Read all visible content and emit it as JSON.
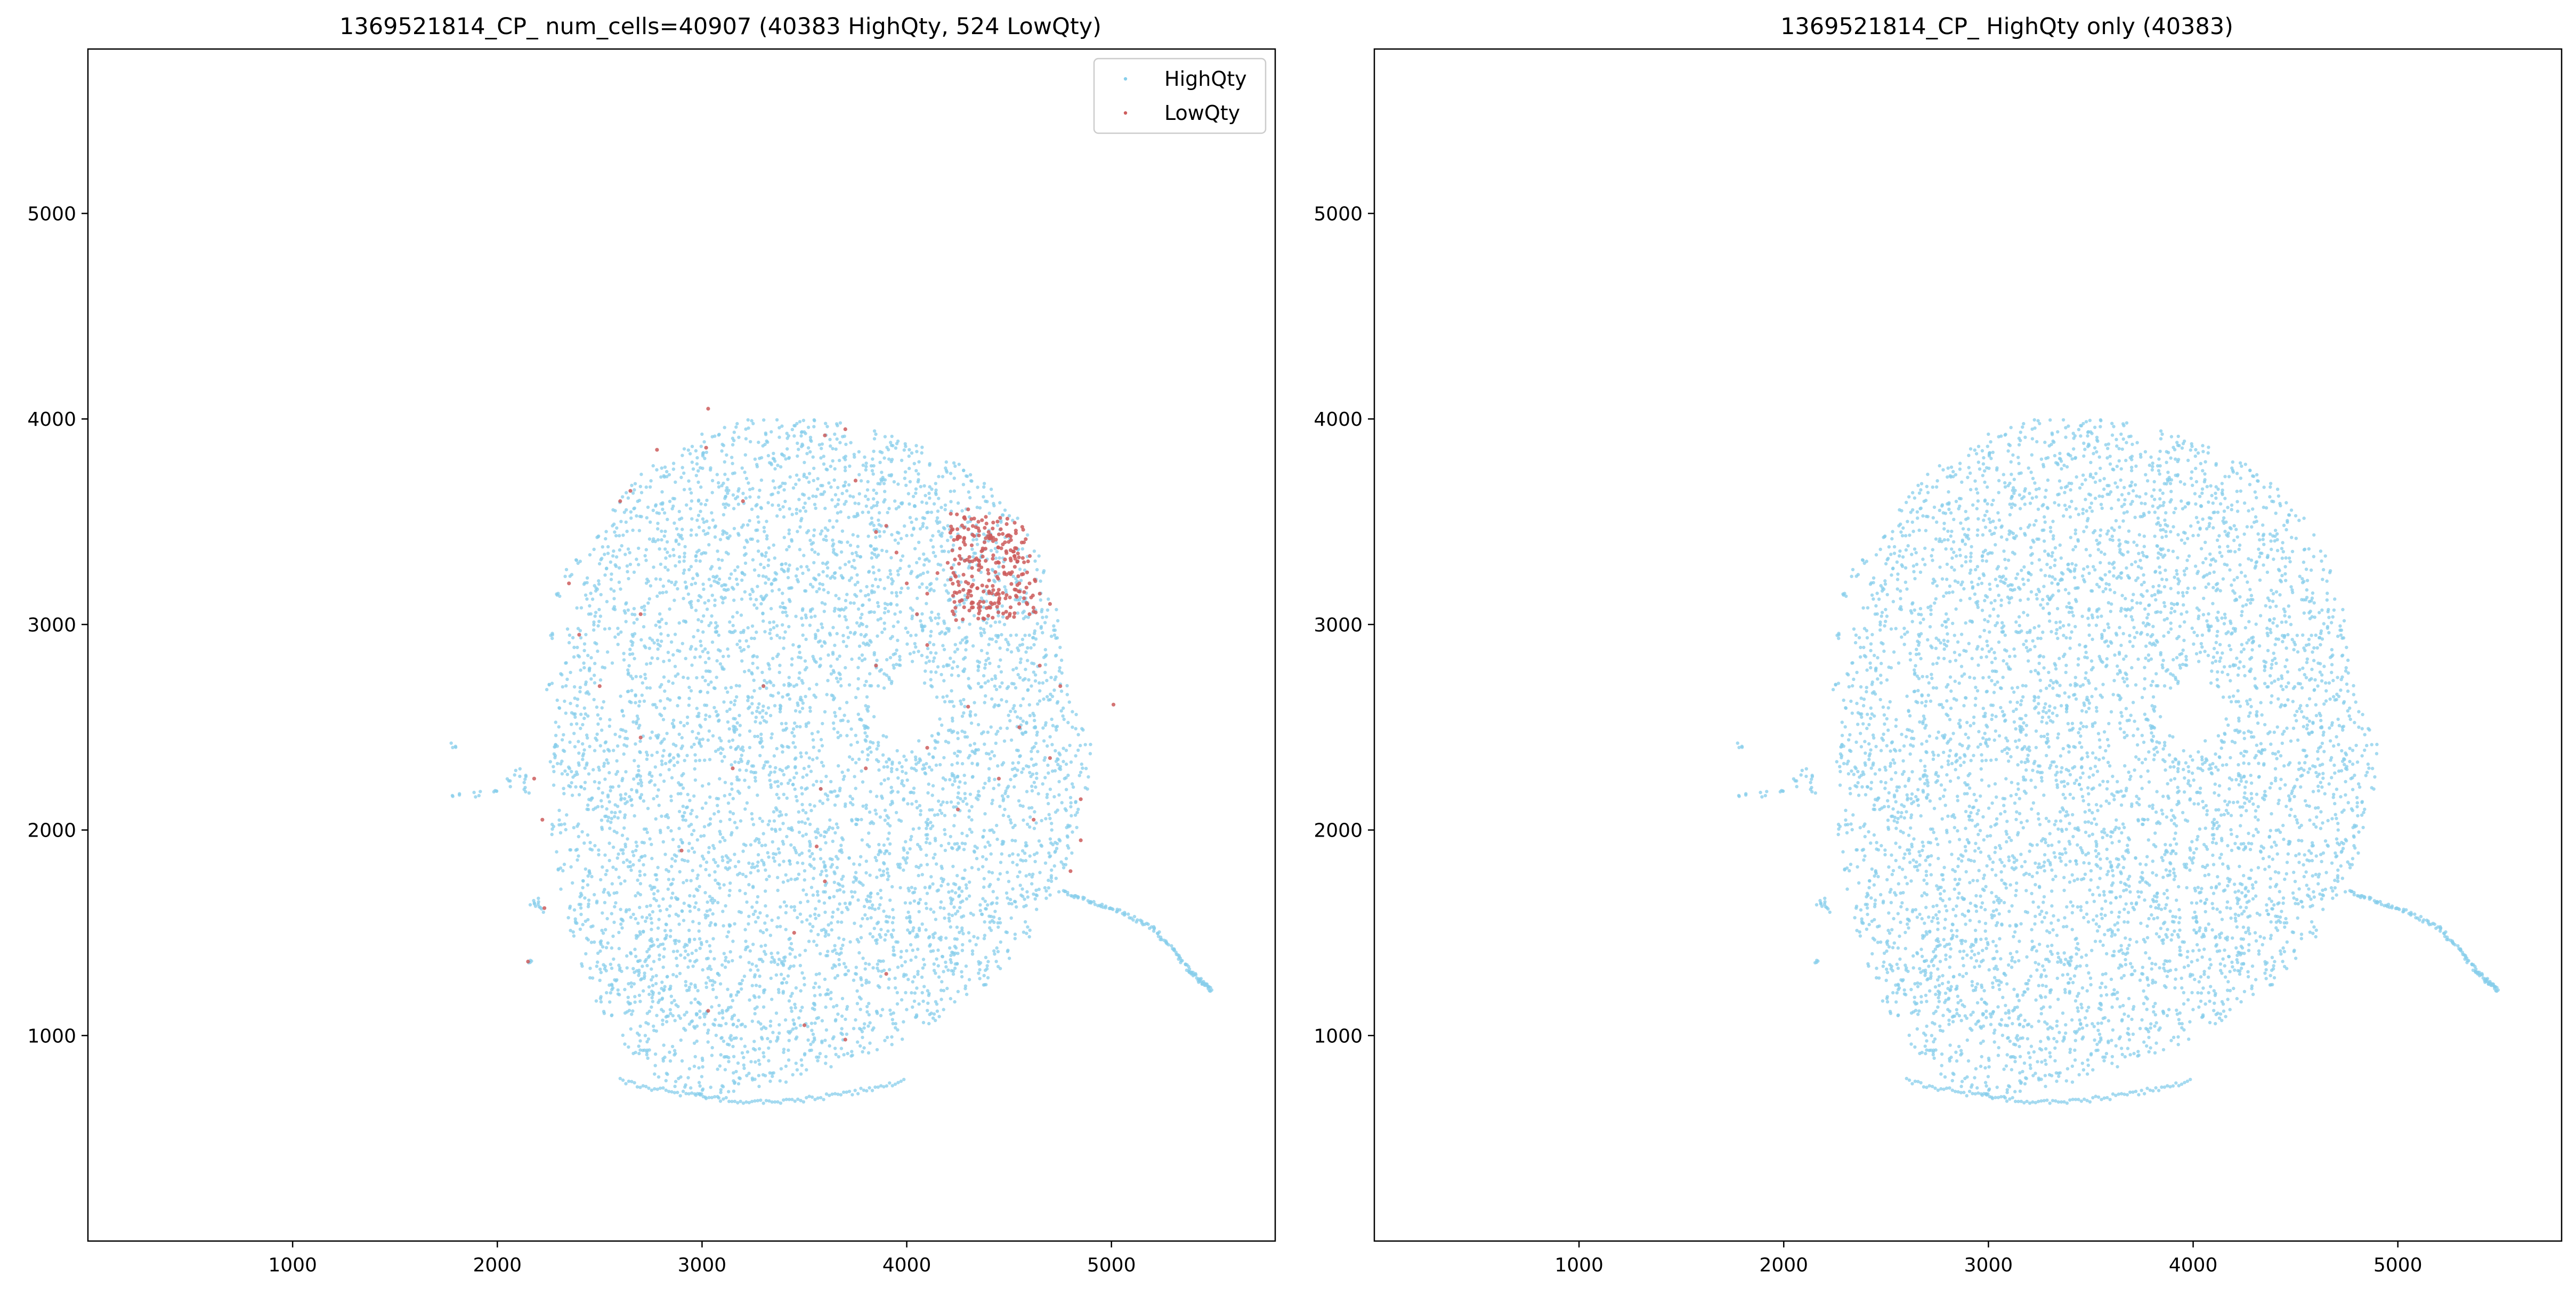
{
  "chart_data": [
    {
      "type": "scatter",
      "title": "1369521814_CP_ num_cells=40907 (40383 HighQty, 524 LowQty)",
      "xlabel": "",
      "ylabel": "",
      "xlim": [
        0,
        5800
      ],
      "ylim": [
        0,
        5800
      ],
      "xticks": [
        1000,
        2000,
        3000,
        4000,
        5000
      ],
      "yticks": [
        1000,
        2000,
        3000,
        4000,
        5000
      ],
      "grid": false,
      "legend": "top-right",
      "series": [
        {
          "name": "HighQty",
          "color": "#87CEEB",
          "count": 40383,
          "shape": "tissue section, roughly circular, centered near (3800, 2350), spanning x 1780-5500, y 660-4020, with a hole near (4000, 2600)"
        },
        {
          "name": "LowQty",
          "color": "#CD5C5C",
          "count": 524,
          "points": [
            [
              4300,
              3560
            ],
            [
              4350,
              3500
            ],
            [
              4280,
              3520
            ],
            [
              4400,
              3450
            ],
            [
              4450,
              3300
            ],
            [
              4500,
              3250
            ],
            [
              4550,
              3200
            ],
            [
              4600,
              3200
            ],
            [
              4420,
              3320
            ],
            [
              4380,
              3400
            ],
            [
              4250,
              3420
            ],
            [
              4200,
              3300
            ],
            [
              4150,
              3250
            ],
            [
              4100,
              3150
            ],
            [
              4050,
              3050
            ],
            [
              4300,
              3150
            ],
            [
              4350,
              3100
            ],
            [
              4230,
              3050
            ],
            [
              4480,
              3400
            ],
            [
              4530,
              3320
            ],
            [
              4650,
              3150
            ],
            [
              4700,
              3100
            ],
            [
              4600,
              3050
            ],
            [
              4000,
              3200
            ],
            [
              3950,
              3350
            ],
            [
              3900,
              3480
            ],
            [
              3850,
              3450
            ],
            [
              3750,
              3700
            ],
            [
              3700,
              3950
            ],
            [
              3600,
              3920
            ],
            [
              3020,
              3860
            ],
            [
              3030,
              4050
            ],
            [
              2780,
              3850
            ],
            [
              2650,
              3650
            ],
            [
              2600,
              3600
            ],
            [
              2400,
              2950
            ],
            [
              2350,
              3200
            ],
            [
              2180,
              2250
            ],
            [
              2220,
              2050
            ],
            [
              2230,
              1620
            ],
            [
              2150,
              1360
            ],
            [
              3030,
              1120
            ],
            [
              3580,
              2200
            ],
            [
              4100,
              2900
            ],
            [
              4650,
              2800
            ],
            [
              4750,
              2700
            ],
            [
              5010,
              2610
            ],
            [
              4850,
              2150
            ],
            [
              4620,
              2050
            ],
            [
              3800,
              2300
            ],
            [
              3560,
              1920
            ],
            [
              3600,
              1750
            ],
            [
              3450,
              1500
            ],
            [
              3900,
              1300
            ],
            [
              3500,
              1050
            ],
            [
              3700,
              980
            ],
            [
              3150,
              2300
            ],
            [
              2900,
              1900
            ],
            [
              2700,
              2450
            ],
            [
              3300,
              2700
            ],
            [
              4100,
              2400
            ],
            [
              4250,
              2100
            ],
            [
              4450,
              2250
            ],
            [
              4700,
              2350
            ],
            [
              4800,
              1800
            ],
            [
              4850,
              1950
            ],
            [
              4550,
              2500
            ],
            [
              4300,
              2600
            ],
            [
              3850,
              2800
            ],
            [
              3200,
              3600
            ],
            [
              2700,
              3050
            ],
            [
              2500,
              2700
            ]
          ]
        }
      ]
    },
    {
      "type": "scatter",
      "title": "1369521814_CP_ HighQty only (40383)",
      "xlabel": "",
      "ylabel": "",
      "xlim": [
        0,
        5800
      ],
      "ylim": [
        0,
        5800
      ],
      "xticks": [
        1000,
        2000,
        3000,
        4000,
        5000
      ],
      "yticks": [
        1000,
        2000,
        3000,
        4000,
        5000
      ],
      "grid": false,
      "series": [
        {
          "name": "HighQty",
          "color": "#87CEEB",
          "count": 40383,
          "shape": "tissue section, roughly circular, centered near (3800, 2350), spanning x 1780-5500, y 660-4020, with a hole near (4000, 2600)"
        }
      ]
    }
  ]
}
